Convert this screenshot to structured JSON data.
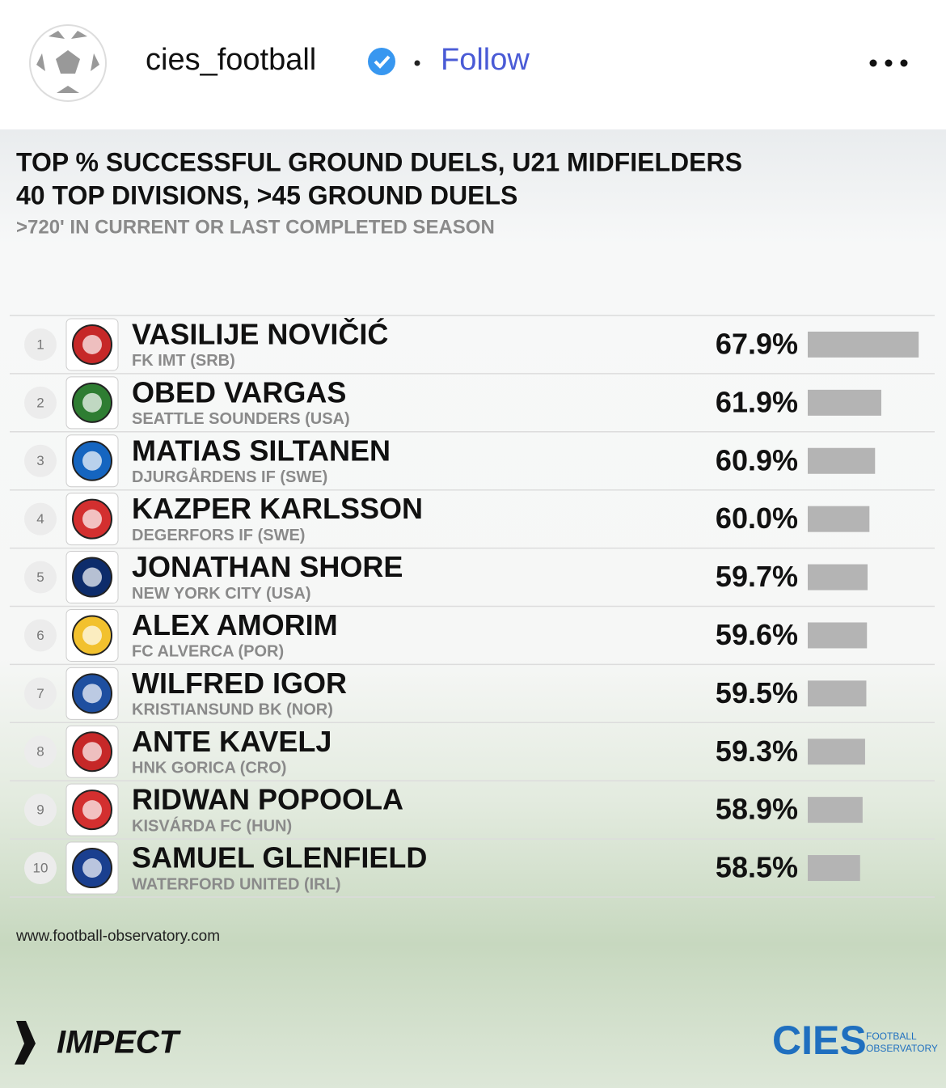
{
  "header": {
    "username": "cies_football",
    "action": "Follow"
  },
  "chart_data": {
    "type": "bar",
    "orientation": "horizontal",
    "title": "TOP % SUCCESSFUL GROUND DUELS, U21 MIDFIELDERS",
    "subtitle": "40 TOP DIVISIONS, >45 GROUND DUELS",
    "note": ">720' IN CURRENT OR LAST COMPLETED SEASON",
    "ranks": [
      1,
      2,
      3,
      4,
      5,
      6,
      7,
      8,
      9,
      10
    ],
    "categories": [
      "VASILIJE NOVIČIĆ",
      "OBED VARGAS",
      "MATIAS SILTANEN",
      "KAZPER KARLSSON",
      "JONATHAN SHORE",
      "ALEX AMORIM",
      "WILFRED IGOR",
      "ANTE KAVELJ",
      "RIDWAN POPOOLA",
      "SAMUEL GLENFIELD"
    ],
    "clubs": [
      "FK IMT (SRB)",
      "SEATTLE SOUNDERS (USA)",
      "DJURGÅRDENS IF (SWE)",
      "DEGERFORS IF (SWE)",
      "NEW YORK CITY (USA)",
      "FC ALVERCA (POR)",
      "KRISTIANSUND BK (NOR)",
      "HNK GORICA (CRO)",
      "KISVÁRDA FC (HUN)",
      "WATERFORD UNITED (IRL)"
    ],
    "values": [
      67.9,
      61.9,
      60.9,
      60.0,
      59.7,
      59.6,
      59.5,
      59.3,
      58.9,
      58.5
    ],
    "value_labels": [
      "67.9%",
      "61.9%",
      "60.9%",
      "60.0%",
      "59.7%",
      "59.6%",
      "59.5%",
      "59.3%",
      "58.9%",
      "58.5%"
    ],
    "xlim": [
      50.1,
      68
    ],
    "color": "#b4b4b4"
  },
  "footer": {
    "url": "www.football-observatory.com",
    "sponsor": "IMPECT",
    "logo": "CIES",
    "logo_caption_1": "FOOTBALL",
    "logo_caption_2": "OBSERVATORY"
  }
}
